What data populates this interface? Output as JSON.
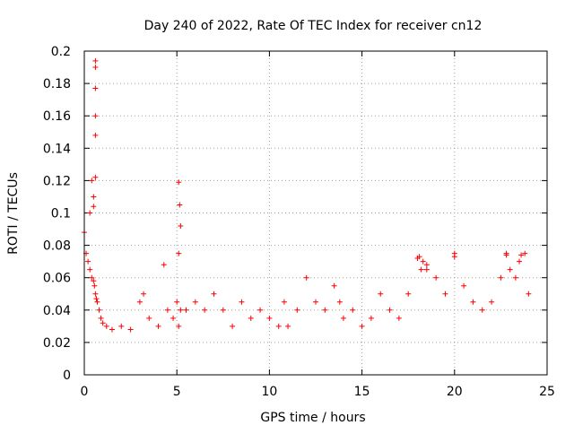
{
  "chart_data": {
    "type": "scatter",
    "title": "Day 240 of 2022, Rate Of TEC Index for receiver cn12",
    "xlabel": "GPS time / hours",
    "ylabel": "ROTI / TECUs",
    "xlim": [
      0,
      25
    ],
    "ylim": [
      0,
      0.2
    ],
    "xticks": [
      "0",
      "5",
      "10",
      "15",
      "20",
      "25"
    ],
    "yticks": [
      "0",
      "0.02",
      "0.04",
      "0.06",
      "0.08",
      "0.1",
      "0.12",
      "0.14",
      "0.16",
      "0.18",
      "0.2"
    ],
    "grid": true,
    "marker": "+",
    "series": [
      {
        "color": "#ff0000",
        "x": [
          0.0,
          0.1,
          0.2,
          0.3,
          0.4,
          0.5,
          0.55,
          0.6,
          0.65,
          0.7,
          0.8,
          0.9,
          1.0,
          1.2,
          1.5,
          2.0,
          2.5,
          3.0,
          3.2,
          3.5,
          4.0,
          4.3,
          4.5,
          4.8,
          5.0,
          5.1,
          5.2,
          5.5,
          6.0,
          6.5,
          7.0,
          7.5,
          8.0,
          8.5,
          9.0,
          9.5,
          10.0,
          10.5,
          10.8,
          11.0,
          11.5,
          12.0,
          12.5,
          13.0,
          13.5,
          13.8,
          14.0,
          14.5,
          15.0,
          15.5,
          16.0,
          16.5,
          17.0,
          17.5,
          18.0,
          18.2,
          18.5,
          19.0,
          19.5,
          20.0,
          20.5,
          21.0,
          21.5,
          22.0,
          22.5,
          22.8,
          23.0,
          23.3,
          23.5,
          23.8,
          24.0,
          0.5,
          0.6,
          0.6,
          0.6,
          0.6,
          0.6,
          0.3,
          0.4,
          0.5,
          0.6,
          5.1,
          5.15,
          5.2,
          5.1,
          18.1,
          18.3,
          18.5,
          20.0,
          22.8,
          23.6
        ],
        "y": [
          0.088,
          0.075,
          0.07,
          0.065,
          0.06,
          0.058,
          0.055,
          0.05,
          0.047,
          0.045,
          0.04,
          0.035,
          0.032,
          0.03,
          0.028,
          0.03,
          0.028,
          0.045,
          0.05,
          0.035,
          0.03,
          0.068,
          0.04,
          0.035,
          0.045,
          0.03,
          0.04,
          0.04,
          0.045,
          0.04,
          0.05,
          0.04,
          0.03,
          0.045,
          0.035,
          0.04,
          0.035,
          0.03,
          0.045,
          0.03,
          0.04,
          0.06,
          0.045,
          0.04,
          0.055,
          0.045,
          0.035,
          0.04,
          0.03,
          0.035,
          0.05,
          0.04,
          0.035,
          0.05,
          0.072,
          0.065,
          0.068,
          0.06,
          0.05,
          0.075,
          0.055,
          0.045,
          0.04,
          0.045,
          0.06,
          0.075,
          0.065,
          0.06,
          0.07,
          0.075,
          0.05,
          0.104,
          0.148,
          0.16,
          0.177,
          0.19,
          0.194,
          0.1,
          0.12,
          0.11,
          0.122,
          0.119,
          0.105,
          0.092,
          0.075,
          0.073,
          0.07,
          0.065,
          0.073,
          0.074,
          0.074
        ]
      }
    ]
  }
}
